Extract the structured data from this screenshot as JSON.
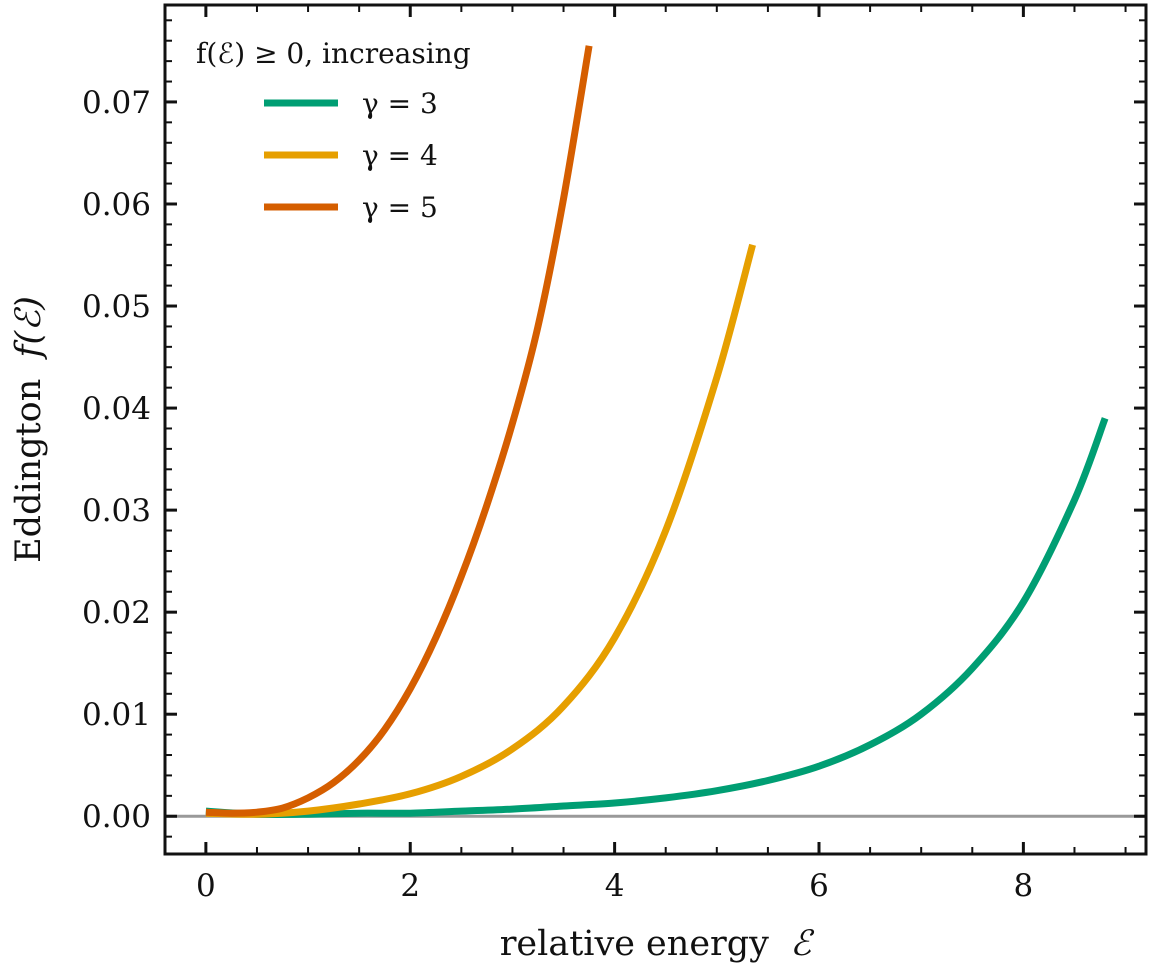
{
  "chart_data": {
    "type": "line",
    "xlabel": "relative energy",
    "xlabel_symbol": "ℰ",
    "ylabel": "Eddington",
    "ylabel_symbol": "f(ℰ)",
    "xlim": [
      -0.4,
      9.2
    ],
    "ylim": [
      -0.0037,
      0.0795
    ],
    "x_ticks": [
      0,
      2,
      4,
      6,
      8
    ],
    "x_tick_labels": [
      "0",
      "2",
      "4",
      "6",
      "8"
    ],
    "y_ticks": [
      0.0,
      0.01,
      0.02,
      0.03,
      0.04,
      0.05,
      0.06,
      0.07
    ],
    "y_tick_labels": [
      "0.00",
      "0.01",
      "0.02",
      "0.03",
      "0.04",
      "0.05",
      "0.06",
      "0.07"
    ],
    "grid": false,
    "legend_position": "top-left",
    "legend_title": "f(ℰ) ≥ 0, increasing",
    "reference_line": {
      "y": 0,
      "color": "#999999"
    },
    "series": [
      {
        "name": "γ = 3",
        "color": "#009E73",
        "x": [
          0.0,
          0.5,
          1.0,
          1.5,
          2.0,
          2.5,
          3.0,
          3.5,
          4.0,
          4.5,
          5.0,
          5.5,
          6.0,
          6.5,
          7.0,
          7.5,
          8.0,
          8.5,
          8.8
        ],
        "y": [
          0.0005,
          0.0002,
          0.0002,
          0.0003,
          0.0003,
          0.0005,
          0.0007,
          0.001,
          0.0013,
          0.0018,
          0.0025,
          0.0035,
          0.0049,
          0.007,
          0.01,
          0.0145,
          0.021,
          0.031,
          0.039
        ]
      },
      {
        "name": "γ = 4",
        "color": "#E69F00",
        "x": [
          0.0,
          0.5,
          1.0,
          1.5,
          2.0,
          2.5,
          3.0,
          3.5,
          4.0,
          4.5,
          5.0,
          5.35
        ],
        "y": [
          0.0003,
          0.0002,
          0.0005,
          0.0012,
          0.0022,
          0.0039,
          0.0066,
          0.0108,
          0.0175,
          0.028,
          0.043,
          0.056
        ]
      },
      {
        "name": "γ = 5",
        "color": "#D55E00",
        "x": [
          0.0,
          0.25,
          0.5,
          0.75,
          1.0,
          1.25,
          1.5,
          1.75,
          2.0,
          2.25,
          2.5,
          2.75,
          3.0,
          3.25,
          3.5,
          3.75
        ],
        "y": [
          0.0004,
          0.0003,
          0.0004,
          0.0008,
          0.0018,
          0.0033,
          0.0055,
          0.0085,
          0.0125,
          0.0175,
          0.0235,
          0.0305,
          0.0385,
          0.048,
          0.0605,
          0.0755
        ]
      }
    ]
  }
}
